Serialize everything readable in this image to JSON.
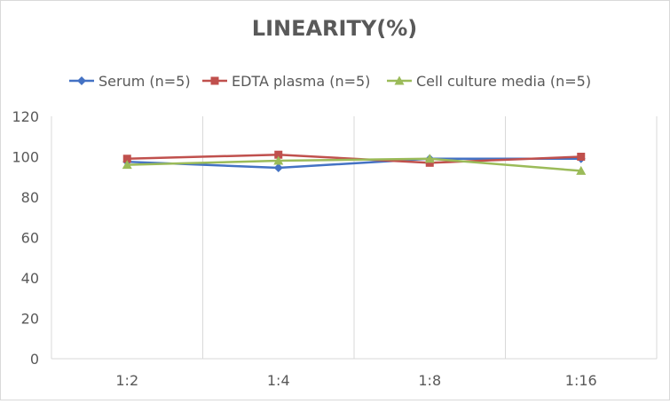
{
  "chart_data": {
    "type": "line",
    "title": "LINEARITY(%)",
    "categories": [
      "1:2",
      "1:4",
      "1:8",
      "1:16"
    ],
    "series": [
      {
        "name": "Serum (n=5)",
        "color": "#4472C4",
        "marker": "diamond",
        "values": [
          97.5,
          94.5,
          99,
          99
        ]
      },
      {
        "name": "EDTA plasma (n=5)",
        "color": "#C0504D",
        "marker": "square",
        "values": [
          99,
          101,
          97,
          100
        ]
      },
      {
        "name": "Cell culture media (n=5)",
        "color": "#9BBB59",
        "marker": "triangle",
        "values": [
          96,
          98,
          99,
          93
        ]
      }
    ],
    "ylim": [
      0,
      120
    ],
    "yticks": [
      "0",
      "20",
      "40",
      "60",
      "80",
      "100",
      "120"
    ],
    "xlabel": "",
    "ylabel": "",
    "grid": "vertical category separators",
    "legend": "top"
  }
}
